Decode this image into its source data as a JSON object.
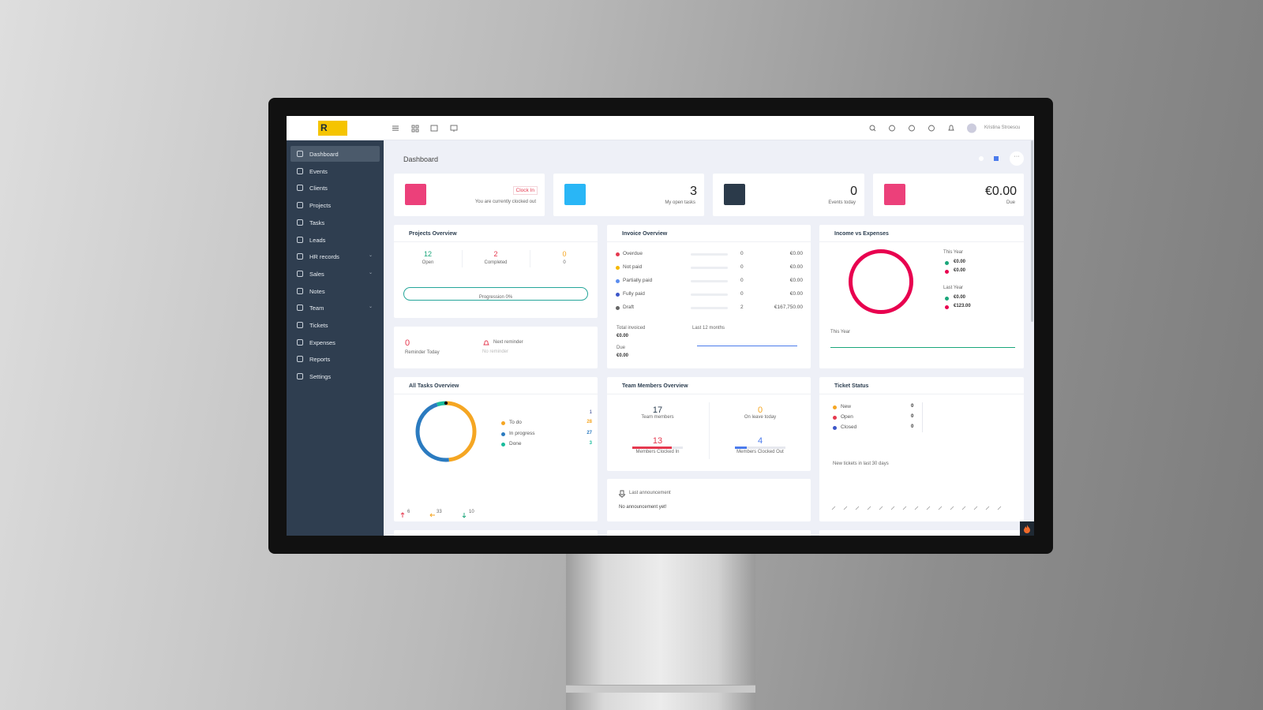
{
  "brand": {
    "logo": "R"
  },
  "topbar": {
    "user": "Kristina Stroescu"
  },
  "sidebar": {
    "items": [
      "Dashboard",
      "Events",
      "Clients",
      "Projects",
      "Tasks",
      "Leads",
      "HR records",
      "Sales",
      "Notes",
      "Team",
      "Tickets",
      "Expenses",
      "Reports",
      "Settings"
    ]
  },
  "page_title": "Dashboard",
  "stat_cards": [
    {
      "button": "Clock In",
      "label": "You are currently clocked out"
    },
    {
      "value": 3,
      "label": "My open tasks"
    },
    {
      "value": 0,
      "label": "Events today"
    },
    {
      "value": "€0.00",
      "label": "Due"
    }
  ],
  "projects_overview": {
    "title": "Projects Overview",
    "stats": [
      {
        "value": 12,
        "label": "Open"
      },
      {
        "value": 2,
        "label": "Completed"
      },
      {
        "value": 0,
        "label": "0"
      }
    ],
    "progress": "Progression 0%"
  },
  "reminder": {
    "value": 0,
    "label": "Reminder Today",
    "next": "Next reminder",
    "none": "No reminder"
  },
  "invoice_overview": {
    "title": "Invoice Overview",
    "rows": [
      {
        "name": "Overdue",
        "count": 0,
        "amount": "€0.00",
        "color": "#e5394f"
      },
      {
        "name": "Not paid",
        "count": 0,
        "amount": "€0.00",
        "color": "#f5b800"
      },
      {
        "name": "Partially paid",
        "count": 0,
        "amount": "€0.00",
        "color": "#5b8def"
      },
      {
        "name": "Fully paid",
        "count": 0,
        "amount": "€0.00",
        "color": "#3d57c9"
      },
      {
        "name": "Draft",
        "count": 2,
        "amount": "€167,750.00",
        "color": "#666666"
      }
    ],
    "total_label": "Total invoiced",
    "total": "€0.00",
    "period": "Last 12 months",
    "due_label": "Due",
    "due": "€0.00"
  },
  "income_expenses": {
    "title": "Income vs Expenses",
    "this_year": "This Year",
    "this_year_values": [
      "€0.00",
      "€0.00"
    ],
    "last_year": "Last Year",
    "last_year_values": [
      "€0.00",
      "€123.00"
    ],
    "chart_label": "This Year"
  },
  "tasks_overview": {
    "title": "All Tasks Overview",
    "top_count": 1,
    "items": [
      {
        "name": "To do",
        "value": 28,
        "color": "#f5a623"
      },
      {
        "name": "In progress",
        "value": 27,
        "color": "#2b7bc0"
      },
      {
        "name": "Done",
        "value": 3,
        "color": "#1abc9c"
      }
    ],
    "footer": [
      6,
      33,
      10
    ]
  },
  "team_overview": {
    "title": "Team Members Overview",
    "members": 17,
    "members_label": "Team members",
    "on_leave": 0,
    "on_leave_label": "On leave today",
    "clocked_in": 13,
    "clocked_in_label": "Members Clocked In",
    "clocked_out": 4,
    "clocked_out_label": "Members Clocked Out"
  },
  "announcement": {
    "title": "Last announcement",
    "text": "No announcement yet!"
  },
  "ticket_status": {
    "title": "Ticket Status",
    "rows": [
      {
        "name": "New",
        "count": 0,
        "color": "#f5a623"
      },
      {
        "name": "Open",
        "count": 0,
        "color": "#e5394f"
      },
      {
        "name": "Closed",
        "count": 0,
        "color": "#3d57c9"
      }
    ],
    "chart_label": "New tickets in last 30 days"
  }
}
